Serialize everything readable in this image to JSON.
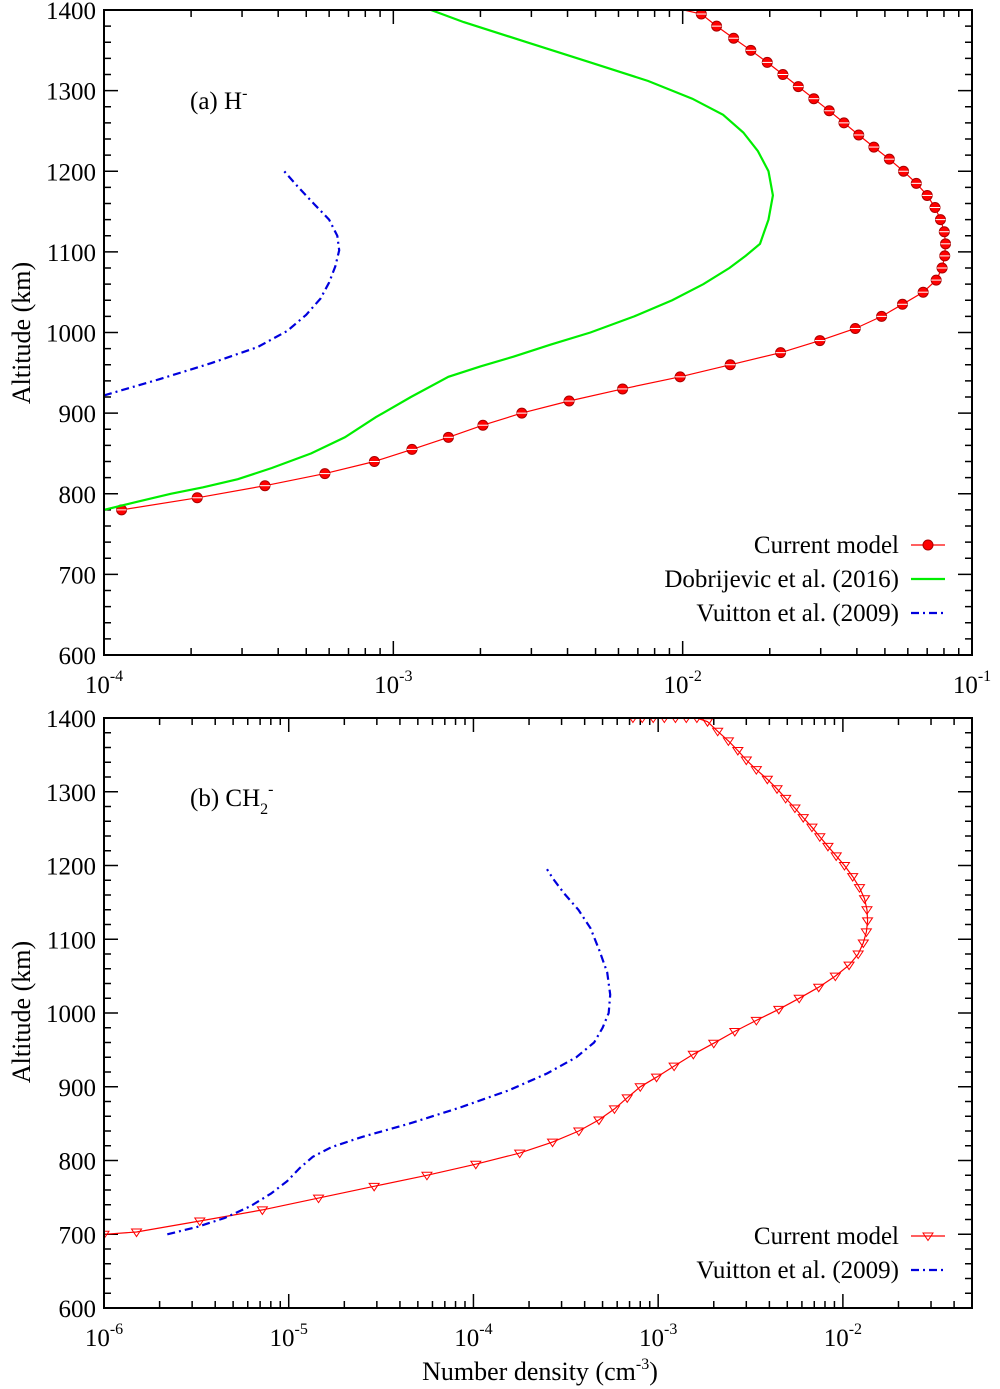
{
  "chart_data": [
    {
      "type": "line",
      "panel_label": "(a) H",
      "panel_label_sup": "-",
      "xscale": "log",
      "xlim": [
        0.0001,
        0.1
      ],
      "ylim": [
        600,
        1400
      ],
      "xlabel": "",
      "ylabel": "Altitude (km)",
      "x_ticks": [
        {
          "base": "10",
          "exp": "-4"
        },
        {
          "base": "10",
          "exp": "-3"
        },
        {
          "base": "10",
          "exp": "-2"
        },
        {
          "base": "10",
          "exp": "-1"
        }
      ],
      "y_ticks": [
        "600",
        "700",
        "800",
        "900",
        "1000",
        "1100",
        "1200",
        "1300",
        "1400"
      ],
      "legend_position": "bottom-right",
      "series": [
        {
          "name": "Current model",
          "color": "#ff0000",
          "style": "solid-with-circle-markers",
          "x": [
            0.000115,
            0.00021,
            0.00036,
            0.00058,
            0.00086,
            0.00116,
            0.00155,
            0.00204,
            0.00278,
            0.00405,
            0.0062,
            0.0098,
            0.0146,
            0.0218,
            0.0298,
            0.0395,
            0.0487,
            0.0575,
            0.0678,
            0.0752,
            0.0788,
            0.0805,
            0.081,
            0.0802,
            0.0778,
            0.0745,
            0.07,
            0.0642,
            0.058,
            0.0518,
            0.0458,
            0.0406,
            0.0361,
            0.0321,
            0.0284,
            0.0251,
            0.0222,
            0.0196,
            0.0172,
            0.015,
            0.0131,
            0.0116,
            0.0101
          ],
          "y": [
            780,
            795,
            810,
            825,
            840,
            855,
            870,
            885,
            900,
            915,
            930,
            945,
            960,
            975,
            990,
            1005,
            1020,
            1035,
            1050,
            1065,
            1080,
            1095,
            1110,
            1125,
            1140,
            1155,
            1170,
            1185,
            1200,
            1215,
            1230,
            1245,
            1260,
            1275,
            1290,
            1305,
            1320,
            1335,
            1350,
            1365,
            1380,
            1395,
            1400
          ]
        },
        {
          "name": "Dobrijevic et al. (2016)",
          "color": "#00ee00",
          "style": "solid",
          "x": [
            0.0001,
            0.00013,
            0.00017,
            0.00022,
            0.00029,
            0.00038,
            0.00052,
            0.00068,
            0.00087,
            0.00115,
            0.00155,
            0.002,
            0.0026,
            0.0035,
            0.0048,
            0.0068,
            0.0092,
            0.0118,
            0.0145,
            0.0165,
            0.0185,
            0.0198,
            0.0205,
            0.0198,
            0.0182,
            0.0162,
            0.0138,
            0.0108,
            0.0076,
            0.0048,
            0.0029,
            0.00175,
            0.00135
          ],
          "y": [
            780,
            790,
            800,
            808,
            818,
            832,
            850,
            870,
            895,
            920,
            945,
            958,
            970,
            985,
            1000,
            1020,
            1040,
            1060,
            1080,
            1095,
            1110,
            1140,
            1170,
            1200,
            1225,
            1248,
            1270,
            1290,
            1312,
            1335,
            1360,
            1385,
            1400
          ]
        },
        {
          "name": "Vuitton et al. (2009)",
          "color": "#0000dd",
          "style": "dash-dot",
          "x": [
            0.0001,
            0.000155,
            0.000235,
            0.00034,
            0.00043,
            0.0005,
            0.00056,
            0.0006,
            0.00063,
            0.00065,
            0.00064,
            0.0006,
            0.00053,
            0.00047,
            0.00042
          ],
          "y": [
            922,
            942,
            962,
            982,
            1002,
            1022,
            1042,
            1062,
            1082,
            1102,
            1120,
            1140,
            1160,
            1180,
            1200
          ]
        }
      ]
    },
    {
      "type": "line",
      "panel_label": "(b) CH",
      "panel_label_sub": "2",
      "panel_label_sup": "-",
      "xscale": "log",
      "xlim": [
        1e-06,
        0.05
      ],
      "ylim": [
        600,
        1400
      ],
      "xlabel": "Number density (cm",
      "xlabel_sup": "-3",
      "xlabel_end": ")",
      "ylabel": "Altitude (km)",
      "x_ticks": [
        {
          "base": "10",
          "exp": "-6"
        },
        {
          "base": "10",
          "exp": "-5"
        },
        {
          "base": "10",
          "exp": "-4"
        },
        {
          "base": "10",
          "exp": "-3"
        },
        {
          "base": "10",
          "exp": "-2"
        }
      ],
      "y_ticks": [
        "600",
        "700",
        "800",
        "900",
        "1000",
        "1100",
        "1200",
        "1300",
        "1400"
      ],
      "legend_position": "bottom-right",
      "series": [
        {
          "name": "Current model",
          "color": "#ff0000",
          "style": "solid-with-triangle-markers",
          "x": [
            1e-06,
            1.5e-06,
            3.3e-06,
            7.2e-06,
            1.45e-05,
            2.9e-05,
            5.6e-05,
            0.000103,
            0.000178,
            0.000268,
            0.000372,
            0.000478,
            0.00058,
            0.00068,
            0.0008,
            0.00098,
            0.00122,
            0.00155,
            0.002,
            0.0026,
            0.0034,
            0.0045,
            0.0058,
            0.0074,
            0.0091,
            0.0108,
            0.0121,
            0.0129,
            0.0134,
            0.0136,
            0.0135,
            0.0131,
            0.0123,
            0.0113,
            0.0102,
            0.0092,
            0.0083,
            0.0075,
            0.0068,
            0.0061,
            0.0055,
            0.0049,
            0.0044,
            0.0039,
            0.0034,
            0.003,
            0.0027,
            0.0024,
            0.0021,
            0.00185,
            0.00162,
            0.00142,
            0.00124,
            0.00108,
            0.00094,
            0.00082,
            0.00073
          ],
          "y": [
            700,
            703,
            718,
            733,
            749,
            765,
            780,
            795,
            810,
            825,
            840,
            855,
            870,
            885,
            900,
            913,
            928,
            944,
            959,
            975,
            990,
            1005,
            1020,
            1035,
            1050,
            1065,
            1080,
            1095,
            1110,
            1125,
            1140,
            1155,
            1170,
            1185,
            1200,
            1213,
            1226,
            1239,
            1252,
            1265,
            1278,
            1291,
            1304,
            1317,
            1330,
            1343,
            1356,
            1369,
            1382,
            1395,
            1400,
            1400,
            1400,
            1400,
            1400,
            1400,
            1400
          ]
        },
        {
          "name": "Vuitton et al. (2009)",
          "color": "#0000dd",
          "style": "dash-dot",
          "x": [
            2.2e-06,
            3.2e-06,
            4.5e-06,
            6.2e-06,
            8e-06,
            9.8e-06,
            1.15e-05,
            1.35e-05,
            1.7e-05,
            2.5e-05,
            4.5e-05,
            8.5e-05,
            0.000155,
            0.00025,
            0.00036,
            0.00045,
            0.0005,
            0.00054,
            0.00055,
            0.00053,
            0.00048,
            0.00043,
            0.00037,
            0.00031,
            0.00027,
            0.00025
          ],
          "y": [
            700,
            710,
            722,
            738,
            755,
            772,
            790,
            805,
            818,
            832,
            850,
            872,
            895,
            918,
            940,
            960,
            980,
            1000,
            1025,
            1055,
            1085,
            1115,
            1140,
            1162,
            1182,
            1195
          ]
        }
      ]
    }
  ]
}
